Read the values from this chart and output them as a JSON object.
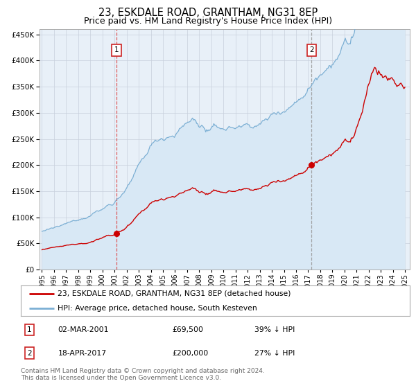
{
  "title": "23, ESKDALE ROAD, GRANTHAM, NG31 8EP",
  "subtitle": "Price paid vs. HM Land Registry's House Price Index (HPI)",
  "legend_line1": "23, ESKDALE ROAD, GRANTHAM, NG31 8EP (detached house)",
  "legend_line2": "HPI: Average price, detached house, South Kesteven",
  "annotation1_date": "02-MAR-2001",
  "annotation1_price": "£69,500",
  "annotation1_hpi": "39% ↓ HPI",
  "annotation2_date": "18-APR-2017",
  "annotation2_price": "£200,000",
  "annotation2_hpi": "27% ↓ HPI",
  "footer": "Contains HM Land Registry data © Crown copyright and database right 2024.\nThis data is licensed under the Open Government Licence v3.0.",
  "red_line_color": "#cc0000",
  "blue_line_color": "#7bafd4",
  "blue_fill_color": "#d8e8f5",
  "vline1_color": "#dd4444",
  "vline2_color": "#999999",
  "background_color": "#ffffff",
  "plot_bg_color": "#e8f0f8",
  "grid_color": "#c8d0dc",
  "ylim": [
    0,
    460000
  ],
  "year_start": 1995,
  "year_end": 2025,
  "sale1_year": 2001.16,
  "sale1_value": 69500,
  "sale2_year": 2017.29,
  "sale2_value": 200000,
  "title_fontsize": 10.5,
  "subtitle_fontsize": 9,
  "axis_fontsize": 7.5,
  "legend_fontsize": 8,
  "annotation_fontsize": 8,
  "footer_fontsize": 6.5
}
